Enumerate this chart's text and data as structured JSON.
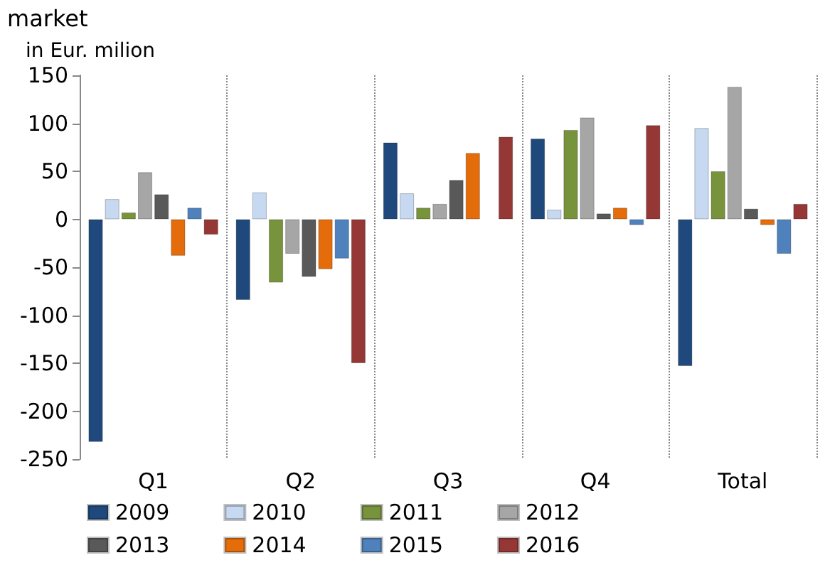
{
  "chart_data": {
    "type": "bar",
    "title": "market",
    "ylabel": "in Eur. milion",
    "categories": [
      "Q1",
      "Q2",
      "Q3",
      "Q4",
      "Total"
    ],
    "series": [
      {
        "name": "2009",
        "color": "#1f497d",
        "values": [
          -232,
          -84,
          80,
          84,
          -153
        ]
      },
      {
        "name": "2010",
        "color": "#c6d9f1",
        "values": [
          21,
          28,
          27,
          10,
          95
        ]
      },
      {
        "name": "2011",
        "color": "#77933c",
        "values": [
          7,
          -66,
          12,
          93,
          50
        ]
      },
      {
        "name": "2012",
        "color": "#a6a6a6",
        "values": [
          49,
          -36,
          16,
          106,
          138
        ]
      },
      {
        "name": "2013",
        "color": "#595959",
        "values": [
          26,
          -60,
          41,
          6,
          11
        ]
      },
      {
        "name": "2014",
        "color": "#e46c0a",
        "values": [
          -38,
          -52,
          69,
          12,
          -6
        ]
      },
      {
        "name": "2015",
        "color": "#4f81bd",
        "values": [
          12,
          -41,
          null,
          -6,
          -36
        ]
      },
      {
        "name": "2016",
        "color": "#953735",
        "values": [
          -16,
          -150,
          86,
          98,
          16
        ]
      }
    ],
    "ylim": [
      -250,
      150
    ],
    "yticks": [
      -250,
      -200,
      -150,
      -100,
      -50,
      0,
      50,
      100,
      150
    ],
    "grid": "x",
    "line_style": "dotted",
    "legend": "bottom"
  }
}
